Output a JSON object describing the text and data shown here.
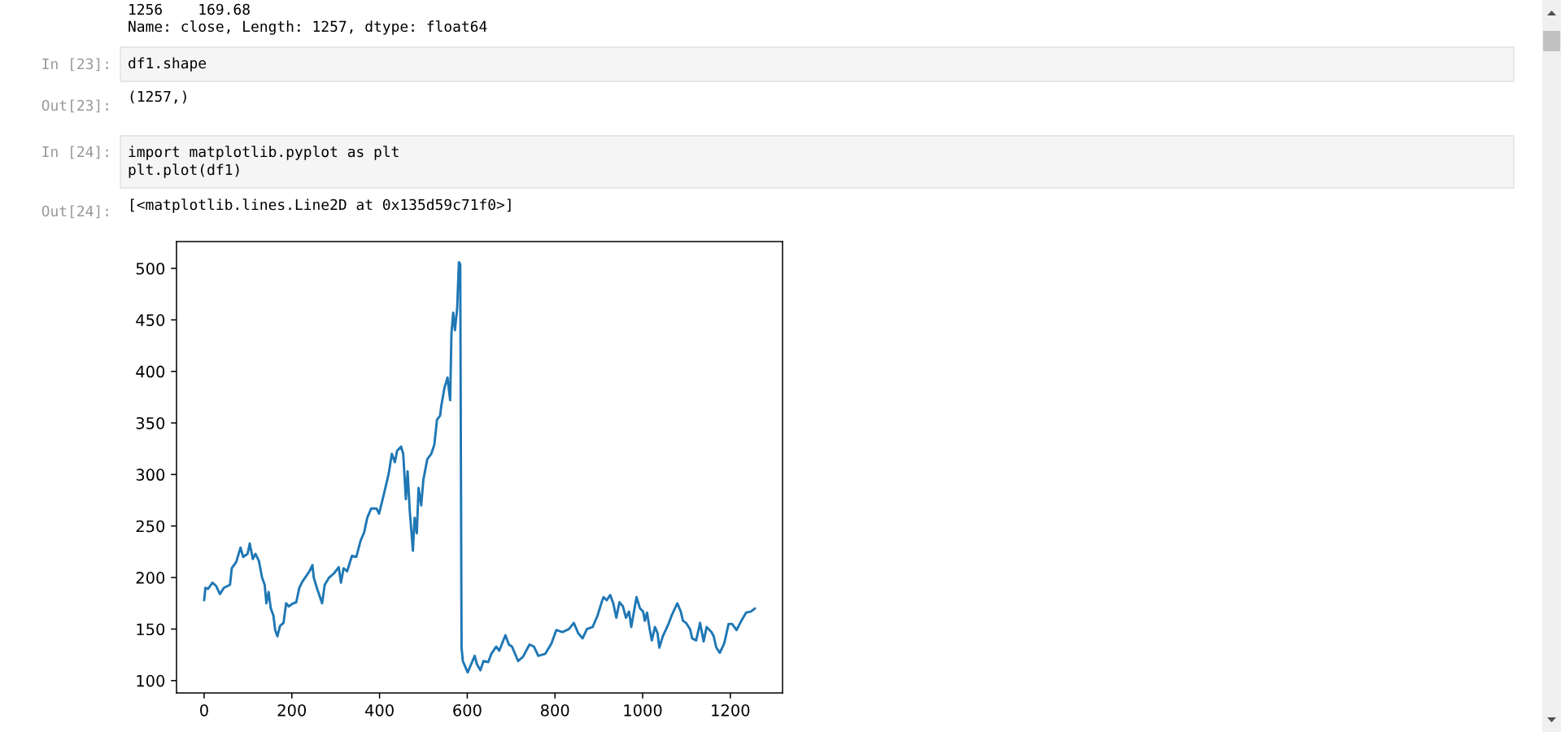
{
  "chart_data": {
    "type": "line",
    "color": "#1f77b4",
    "x": [
      0,
      3,
      9,
      19,
      27,
      36,
      45,
      59,
      63,
      73,
      83,
      89,
      99,
      104,
      111,
      117,
      125,
      132,
      138,
      142,
      147,
      152,
      158,
      162,
      167,
      173,
      181,
      187,
      193,
      203,
      210,
      217,
      224,
      232,
      240,
      247,
      250,
      257,
      269,
      275,
      285,
      296,
      307,
      312,
      318,
      326,
      337,
      347,
      357,
      365,
      372,
      381,
      393,
      399,
      410,
      421,
      428,
      435,
      440,
      449,
      454,
      460,
      464,
      469,
      473,
      476,
      480,
      485,
      489,
      495,
      500,
      509,
      518,
      525,
      531,
      538,
      541,
      548,
      555,
      561,
      564,
      568,
      572,
      577,
      581,
      584,
      587,
      590,
      596,
      601,
      608,
      617,
      622,
      630,
      637,
      648,
      655,
      666,
      673,
      687,
      695,
      702,
      716,
      727,
      742,
      752,
      762,
      778,
      792,
      803,
      817,
      832,
      843,
      853,
      863,
      873,
      886,
      897,
      908,
      911,
      918,
      926,
      933,
      940,
      947,
      955,
      962,
      969,
      974,
      986,
      994,
      1001,
      1005,
      1010,
      1016,
      1021,
      1028,
      1034,
      1038,
      1046,
      1059,
      1066,
      1079,
      1087,
      1092,
      1099,
      1108,
      1113,
      1122,
      1131,
      1139,
      1146,
      1157,
      1162,
      1168,
      1176,
      1186,
      1196,
      1204,
      1214,
      1225,
      1236,
      1247,
      1256
    ],
    "values": [
      178,
      190,
      189,
      195,
      192,
      184,
      190,
      193,
      209,
      215,
      229,
      220,
      223,
      233,
      218,
      223,
      216,
      200,
      193,
      175,
      186,
      170,
      163,
      149,
      143,
      153,
      156,
      175,
      172,
      175,
      176,
      190,
      196,
      201,
      206,
      212,
      200,
      190,
      175,
      193,
      200,
      204,
      210,
      195,
      209,
      206,
      221,
      220,
      236,
      244,
      258,
      267,
      267,
      262,
      281,
      301,
      320,
      312,
      323,
      327,
      320,
      276,
      303,
      264,
      243,
      226,
      258,
      243,
      287,
      270,
      295,
      315,
      320,
      329,
      353,
      357,
      367,
      384,
      394,
      372,
      437,
      457,
      440,
      461,
      506,
      504,
      132,
      119,
      113,
      108,
      115,
      124,
      116,
      110,
      119,
      118,
      126,
      133,
      129,
      144,
      135,
      133,
      119,
      123,
      135,
      133,
      124,
      126,
      136,
      149,
      147,
      150,
      156,
      146,
      141,
      150,
      152,
      163,
      178,
      181,
      178,
      183,
      175,
      161,
      176,
      172,
      161,
      167,
      152,
      181,
      170,
      167,
      158,
      166,
      150,
      139,
      152,
      146,
      132,
      143,
      155,
      163,
      175,
      167,
      158,
      156,
      150,
      141,
      139,
      156,
      138,
      152,
      147,
      143,
      132,
      127,
      136,
      155,
      155,
      149,
      158,
      166,
      167,
      170
    ],
    "xlim": [
      -63,
      1319
    ],
    "ylim": [
      88,
      526
    ],
    "xticks": [
      0,
      200,
      400,
      600,
      800,
      1000,
      1200
    ],
    "yticks": [
      100,
      150,
      200,
      250,
      300,
      350,
      400,
      450,
      500
    ],
    "annotations": [
      "1256    169.68",
      "Name: close, Length: 1257, dtype: float64",
      "In [23]:",
      "df1.shape",
      "Out[23]:",
      "(1257,)",
      "In [24]:",
      "import matplotlib.pyplot as plt\nplt.plot(df1)",
      "Out[24]:",
      "[<matplotlib.lines.Line2D at 0x135d59c71f0>]"
    ]
  }
}
